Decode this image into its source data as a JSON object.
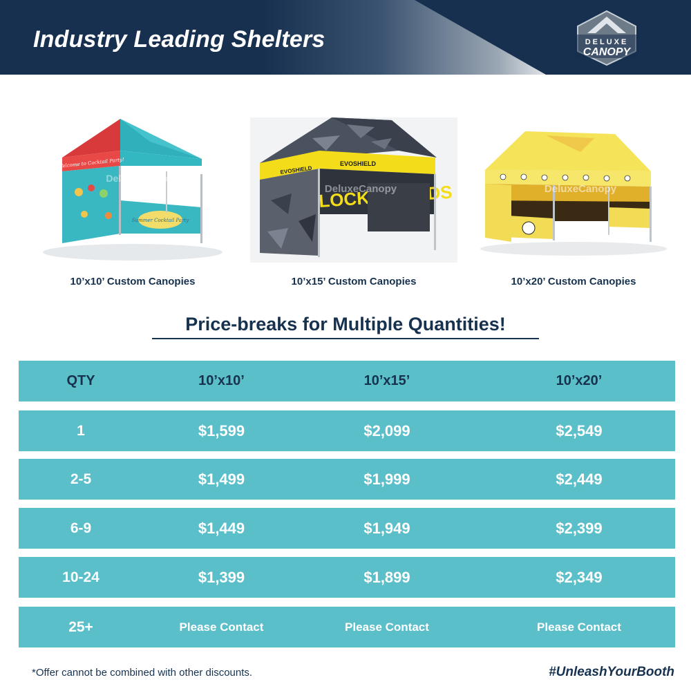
{
  "header": {
    "title": "Industry Leading Shelters",
    "logo_top": "DELUXE",
    "logo_bottom": "CANOPY"
  },
  "products": [
    {
      "label": "10’x10’ Custom Canopies",
      "banner_text": "Welcome to Cocktail Party!",
      "wall_text": "Summer Cocktail Party"
    },
    {
      "label": "10’x15’ Custom Canopies",
      "banner_text": "EVOSHIELD",
      "wall_text": "LOCK SHIELDS",
      "side_text": "LOCK SHIELDS"
    },
    {
      "label": "10’x20’ Custom Canopies"
    }
  ],
  "watermark": "DeluxeCanopy",
  "section_title": "Price-breaks for Multiple Quantities!",
  "table": {
    "headers": [
      "QTY",
      "10’x10’",
      "10’x15’",
      "10’x20’"
    ],
    "rows": [
      [
        "1",
        "$1,599",
        "$2,099",
        "$2,549"
      ],
      [
        "2-5",
        "$1,499",
        "$1,999",
        "$2,449"
      ],
      [
        "6-9",
        "$1,449",
        "$1,949",
        "$2,399"
      ],
      [
        "10-24",
        "$1,399",
        "$1,899",
        "$2,349"
      ],
      [
        "25+",
        "Please Contact",
        "Please Contact",
        "Please Contact"
      ]
    ]
  },
  "footer": {
    "note": "*Offer cannot be combined with other discounts.",
    "hashtag": "#UnleashYourBooth"
  },
  "colors": {
    "navy": "#17304f",
    "teal_row": "#5bbfc9",
    "white": "#ffffff",
    "canopy1_red": "#e2403f",
    "canopy1_teal": "#39b9c3",
    "canopy2_yellow": "#f3dd1a",
    "canopy2_camo": "#3c4250",
    "canopy3_yellow": "#f5e35a"
  }
}
